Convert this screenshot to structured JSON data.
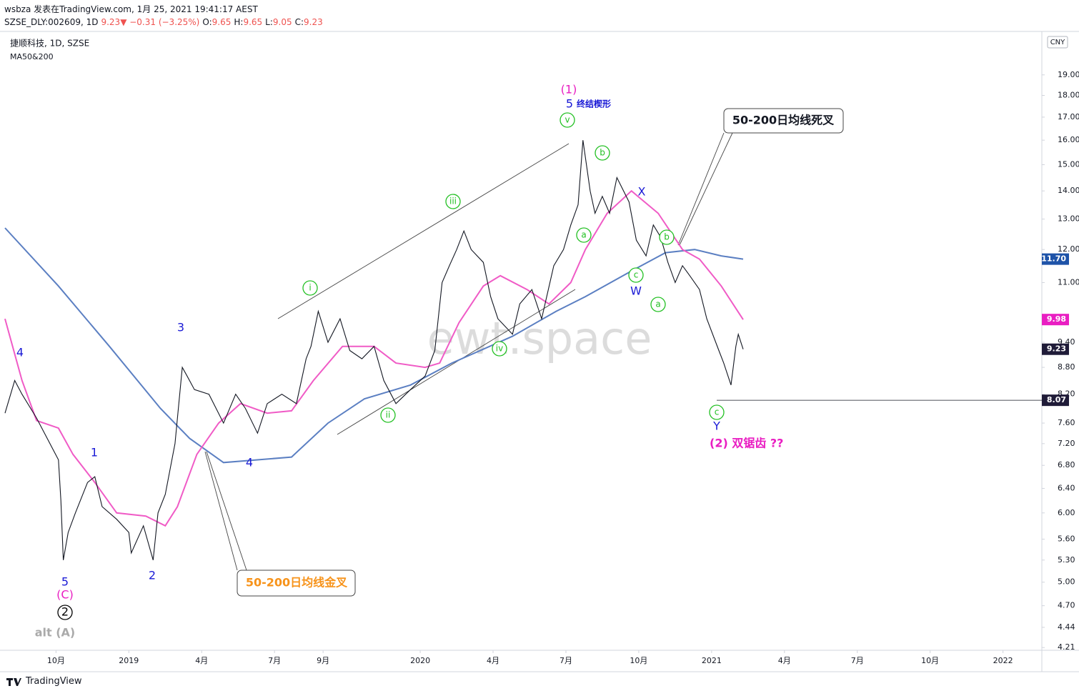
{
  "header": {
    "line1": "wsbza 发表在TradingView.com, 1月 25, 2021 19:41:17 AEST",
    "line2": [
      {
        "text": "SZSE_DLY:002609, 1D",
        "color": "#131722"
      },
      {
        "text": "9.23▼ −0.31 (−3.25%)",
        "color": "#ef5350"
      },
      {
        "text": "O:",
        "color": "#131722"
      },
      {
        "text": "9.65",
        "color": "#ef5350"
      },
      {
        "text": "H:",
        "color": "#131722"
      },
      {
        "text": "9.65",
        "color": "#ef5350"
      },
      {
        "text": "L:",
        "color": "#131722"
      },
      {
        "text": "9.05",
        "color": "#ef5350"
      },
      {
        "text": "C:",
        "color": "#131722"
      },
      {
        "text": "9.23",
        "color": "#ef5350"
      }
    ]
  },
  "footer": "TradingView",
  "chart_data": {
    "type": "line",
    "symbol": "捷顺科技, 1D, SZSE",
    "indicator": "MA50&200",
    "currency": "CNY",
    "watermark": "ewt.space",
    "log_scale": true,
    "xlim": [
      6.9,
      49.6
    ],
    "ylim": [
      4.18,
      21.3
    ],
    "xticks": [
      {
        "value": 9,
        "label": "10月"
      },
      {
        "value": 12,
        "label": "2019"
      },
      {
        "value": 15,
        "label": "4月"
      },
      {
        "value": 18,
        "label": "7月"
      },
      {
        "value": 20,
        "label": "9月"
      },
      {
        "value": 24,
        "label": "2020"
      },
      {
        "value": 27,
        "label": "4月"
      },
      {
        "value": 30,
        "label": "7月"
      },
      {
        "value": 33,
        "label": "10月"
      },
      {
        "value": 36,
        "label": "2021"
      },
      {
        "value": 39,
        "label": "4月"
      },
      {
        "value": 42,
        "label": "7月"
      },
      {
        "value": 45,
        "label": "10月"
      },
      {
        "value": 48,
        "label": "2022"
      }
    ],
    "yticks": [
      {
        "value": 19,
        "label": "19.00"
      },
      {
        "value": 18,
        "label": "18.00"
      },
      {
        "value": 17,
        "label": "17.00"
      },
      {
        "value": 16,
        "label": "16.00"
      },
      {
        "value": 15,
        "label": "15.00"
      },
      {
        "value": 14,
        "label": "14.00"
      },
      {
        "value": 13,
        "label": "13.00"
      },
      {
        "value": 12,
        "label": "12.00"
      },
      {
        "value": 11,
        "label": "11.00"
      },
      {
        "value": 9.4,
        "label": "9.40"
      },
      {
        "value": 8.8,
        "label": "8.80"
      },
      {
        "value": 8.2,
        "label": "8.20"
      },
      {
        "value": 7.6,
        "label": "7.60"
      },
      {
        "value": 7.2,
        "label": "7.20"
      },
      {
        "value": 6.8,
        "label": "6.80"
      },
      {
        "value": 6.4,
        "label": "6.40"
      },
      {
        "value": 6,
        "label": "6.00"
      },
      {
        "value": 5.6,
        "label": "5.60"
      },
      {
        "value": 5.3,
        "label": "5.30"
      },
      {
        "value": 5,
        "label": "5.00"
      },
      {
        "value": 4.7,
        "label": "4.70"
      },
      {
        "value": 4.44,
        "label": "4.44"
      },
      {
        "value": 4.21,
        "label": "4.21"
      }
    ],
    "price": {
      "color": "#131722",
      "x": [
        6.9,
        7.3,
        7.6,
        8.2,
        9.1,
        9.2,
        9.3,
        9.5,
        9.8,
        10.3,
        10.6,
        10.9,
        11.5,
        12.0,
        12.1,
        12.6,
        13.0,
        13.2,
        13.5,
        13.9,
        14.2,
        14.4,
        14.7,
        15.3,
        15.9,
        16.4,
        16.8,
        17.3,
        17.7,
        18.3,
        18.9,
        19.3,
        19.5,
        19.8,
        20.2,
        20.7,
        21.1,
        21.6,
        22.1,
        22.5,
        23.0,
        23.6,
        24.2,
        24.6,
        24.9,
        25.2,
        25.5,
        25.8,
        26.1,
        26.6,
        26.9,
        27.2,
        27.5,
        27.8,
        28.1,
        28.6,
        29.0,
        29.5,
        29.9,
        30.2,
        30.5,
        30.7,
        31.0,
        31.2,
        31.5,
        31.8,
        32.1,
        32.6,
        32.9,
        33.3,
        33.6,
        33.9,
        34.2,
        34.5,
        34.8,
        35.1,
        35.5,
        35.8,
        36.3,
        36.5,
        36.8,
        37.0,
        37.1,
        37.3
      ],
      "values": [
        7.8,
        8.5,
        8.2,
        7.7,
        6.9,
        6.2,
        5.3,
        5.7,
        6.0,
        6.5,
        6.6,
        6.1,
        5.9,
        5.7,
        5.4,
        5.8,
        5.3,
        6.0,
        6.3,
        7.2,
        8.8,
        8.6,
        8.3,
        8.2,
        7.6,
        8.2,
        7.9,
        7.4,
        8.0,
        8.2,
        8.0,
        9.0,
        9.3,
        10.2,
        9.4,
        10.0,
        9.2,
        9.0,
        9.3,
        8.5,
        8.0,
        8.3,
        8.6,
        9.2,
        11.0,
        11.5,
        12.0,
        12.6,
        12.0,
        11.6,
        10.6,
        10.0,
        9.8,
        9.6,
        10.4,
        10.8,
        10.0,
        11.5,
        12.0,
        12.8,
        13.5,
        16.0,
        14.0,
        13.2,
        13.8,
        13.2,
        14.5,
        13.6,
        12.3,
        11.8,
        12.8,
        12.4,
        11.6,
        11.0,
        11.5,
        11.2,
        10.8,
        10.0,
        9.2,
        8.9,
        8.4,
        9.3,
        9.6,
        9.23
      ]
    },
    "ma50": {
      "color": "#f05bc6",
      "x": [
        6.9,
        7.6,
        8.2,
        9.1,
        9.7,
        10.6,
        11.5,
        12.7,
        13.5,
        14.0,
        14.8,
        15.7,
        16.6,
        17.7,
        18.7,
        19.6,
        20.8,
        22.1,
        23.0,
        24.2,
        24.8,
        25.6,
        26.6,
        27.3,
        28.4,
        29.3,
        30.2,
        30.8,
        31.7,
        32.7,
        33.8,
        34.8,
        35.5,
        36.4,
        37.3
      ],
      "values": [
        10.0,
        8.5,
        7.65,
        7.5,
        7.0,
        6.5,
        6.0,
        5.95,
        5.8,
        6.1,
        7.0,
        7.6,
        8.0,
        7.8,
        7.85,
        8.5,
        9.3,
        9.3,
        8.9,
        8.8,
        8.9,
        9.9,
        10.9,
        11.2,
        10.8,
        10.4,
        11.0,
        12.0,
        13.2,
        14.0,
        13.2,
        12.0,
        11.7,
        10.9,
        9.98
      ]
    },
    "ma200": {
      "color": "#5b7fc2",
      "x": [
        6.9,
        9.1,
        11.2,
        13.3,
        14.5,
        15.9,
        17.3,
        18.7,
        20.2,
        21.7,
        23.6,
        25.3,
        27.8,
        29.6,
        30.8,
        32.6,
        34.1,
        35.3,
        36.4,
        37.3
      ],
      "values": [
        12.7,
        10.9,
        9.3,
        7.9,
        7.3,
        6.85,
        6.9,
        6.95,
        7.6,
        8.1,
        8.4,
        8.9,
        9.55,
        10.2,
        10.6,
        11.3,
        11.9,
        12.0,
        11.8,
        11.7
      ]
    },
    "price_labels": [
      {
        "value": 11.7,
        "label": "11.70",
        "color": "#1e53a8"
      },
      {
        "value": 9.98,
        "label": "9.98",
        "color": "#e91ec2"
      },
      {
        "value": 9.23,
        "label": "9.23",
        "color": "#1f1b38"
      },
      {
        "value": 8.07,
        "label": "8.07",
        "color": "#1f1b38"
      }
    ],
    "annotations": [
      {
        "text": "4",
        "color": "#1a1ad6"
      },
      {
        "text": "5",
        "color": "#1a1ad6"
      },
      {
        "text": "(C)",
        "color": "#e91ec2"
      },
      {
        "text": "2",
        "color": "#000000",
        "circled": true
      },
      {
        "text": "alt (A)",
        "color": "#aaaaaa"
      },
      {
        "text": "1",
        "color": "#1a1ad6"
      },
      {
        "text": "2",
        "color": "#1a1ad6"
      },
      {
        "text": "3",
        "color": "#1a1ad6"
      },
      {
        "text": "4",
        "color": "#1a1ad6"
      },
      {
        "text": "i",
        "color": "#22c022",
        "circled": true
      },
      {
        "text": "ii",
        "color": "#22c022",
        "circled": true
      },
      {
        "text": "iii",
        "color": "#22c022",
        "circled": true
      },
      {
        "text": "iv",
        "color": "#22c022",
        "circled": true
      },
      {
        "text": "v",
        "color": "#22c022",
        "circled": true
      },
      {
        "text": "(1)",
        "color": "#e91ec2"
      },
      {
        "text": "5",
        "color": "#1a1ad6"
      },
      {
        "text": "终结楔形",
        "color": "#1a1ad6"
      },
      {
        "text": "b",
        "color": "#22c022",
        "circled": true
      },
      {
        "text": "a",
        "color": "#22c022",
        "circled": true
      },
      {
        "text": "c",
        "color": "#22c022",
        "circled": true
      },
      {
        "text": "W",
        "color": "#1a1ad6"
      },
      {
        "text": "X",
        "color": "#1a1ad6"
      },
      {
        "text": "b",
        "color": "#22c022",
        "circled": true
      },
      {
        "text": "a",
        "color": "#22c022",
        "circled": true
      },
      {
        "text": "c",
        "color": "#22c022",
        "circled": true
      },
      {
        "text": "Y",
        "color": "#1a1ad6"
      },
      {
        "text": "(2) 双锯齿 ??",
        "color": "#e91ec2"
      }
    ],
    "callouts": [
      {
        "text": "50-200日均线死叉",
        "color": "#131722"
      },
      {
        "text": "50-200日均线金叉",
        "color": "#f7931a"
      }
    ]
  }
}
